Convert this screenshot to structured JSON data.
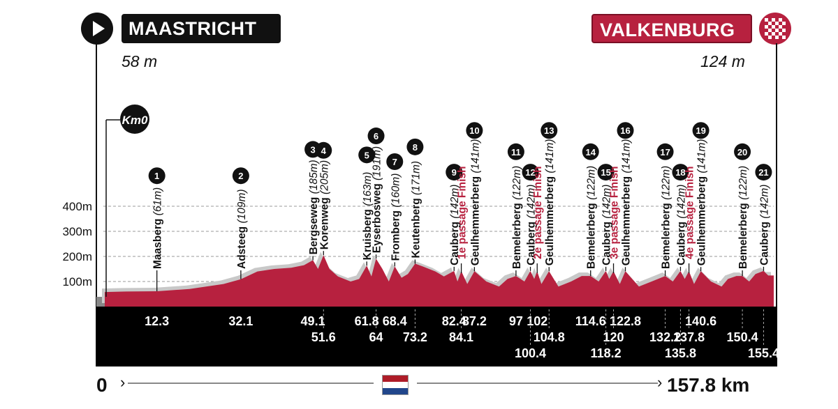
{
  "header": {
    "start_town": "MAASTRICHT",
    "start_elevation": "58 m",
    "finish_town": "VALKENBURG",
    "finish_elevation": "124 m"
  },
  "footer": {
    "start_km": "0",
    "total_km": "157.8 km"
  },
  "colors": {
    "profile": "#b7213f",
    "finish_highlight": "#b7213f",
    "base_band": "#000000",
    "shadow": "#c8c8c8"
  },
  "chart_data": {
    "type": "area",
    "xlabel": "",
    "ylabel": "",
    "x_range": [
      0,
      157.8
    ],
    "y_range": [
      0,
      500
    ],
    "y_ticks": [
      "100m",
      "200m",
      "300m",
      "400m"
    ],
    "start_marker": "Km0",
    "profile": {
      "x": [
        0,
        5,
        12.3,
        20,
        28,
        32.1,
        36,
        40,
        44,
        47,
        49.1,
        50.3,
        51.6,
        53,
        55,
        58,
        60,
        61.8,
        62.9,
        64,
        65.5,
        67,
        68.4,
        70,
        71.5,
        73.2,
        75,
        78,
        80,
        82.4,
        83.2,
        84.1,
        85.5,
        87.2,
        90,
        93,
        95,
        97,
        99,
        100.4,
        101.3,
        102,
        103,
        104.8,
        107,
        110,
        112.5,
        114.6,
        116.5,
        118.2,
        119,
        120,
        121.5,
        122.8,
        126,
        129,
        132.2,
        134,
        135.8,
        136.8,
        137.8,
        139,
        140.6,
        143,
        145.5,
        147,
        149,
        150.4,
        152,
        153.5,
        155.4,
        156.5,
        157.8
      ],
      "y": [
        58,
        60,
        61,
        70,
        90,
        109,
        140,
        150,
        155,
        165,
        185,
        150,
        205,
        150,
        120,
        100,
        110,
        163,
        120,
        191,
        150,
        100,
        160,
        115,
        130,
        171,
        160,
        140,
        120,
        142,
        100,
        141,
        90,
        141,
        100,
        80,
        110,
        122,
        100,
        142,
        110,
        141,
        90,
        141,
        80,
        100,
        122,
        122,
        100,
        142,
        110,
        141,
        90,
        141,
        80,
        100,
        122,
        100,
        142,
        110,
        141,
        90,
        141,
        100,
        80,
        110,
        122,
        122,
        100,
        130,
        142,
        124,
        124
      ]
    },
    "climbs": [
      {
        "num": "1",
        "name": "Maasberg",
        "height": "(61m)",
        "km": 12.3,
        "km_label": "12.3",
        "row": 0
      },
      {
        "num": "2",
        "name": "Adsteeg",
        "height": "(109m)",
        "km": 32.1,
        "km_label": "32.1",
        "row": 0
      },
      {
        "num": "3",
        "name": "Bergseweg",
        "height": "(185m)",
        "km": 49.1,
        "km_label": "49.1",
        "row": 0
      },
      {
        "num": "4",
        "name": "Korenweg",
        "height": "(205m)",
        "km": 51.6,
        "km_label": "51.6",
        "row": 1
      },
      {
        "num": "5",
        "name": "Kruisberg",
        "height": "(163m)",
        "km": 61.8,
        "km_label": "61.8",
        "row": 0
      },
      {
        "num": "6",
        "name": "Eyserbosweg",
        "height": "(191m)",
        "km": 64,
        "km_label": "64",
        "row": 1
      },
      {
        "num": "7",
        "name": "Fromberg",
        "height": "(160m)",
        "km": 68.4,
        "km_label": "68.4",
        "row": 0
      },
      {
        "num": "8",
        "name": "Keutenberg",
        "height": "(171m)",
        "km": 73.2,
        "km_label": "73.2",
        "row": 1
      },
      {
        "num": "9",
        "name": "Cauberg",
        "height": "(142m)",
        "km": 82.4,
        "km_label": "82.4",
        "row": 0
      },
      {
        "num": "10",
        "name": "Geulhemmerberg",
        "height": "(141m)",
        "km": 87.2,
        "km_label": "87.2",
        "row": 0
      },
      {
        "num": "11",
        "name": "Bemelerberg",
        "height": "(122m)",
        "km": 97,
        "km_label": "97",
        "row": 0
      },
      {
        "num": "12",
        "name": "Cauberg",
        "height": "(142m)",
        "km": 100.4,
        "km_label": "100.4",
        "row": 2
      },
      {
        "num": "13",
        "name": "Geulhemmerberg",
        "height": "(141m)",
        "km": 104.8,
        "km_label": "104.8",
        "row": 1
      },
      {
        "num": "14",
        "name": "Bemelerberg",
        "height": "(122m)",
        "km": 114.6,
        "km_label": "114.6",
        "row": 0
      },
      {
        "num": "15",
        "name": "Cauberg",
        "height": "(142m)",
        "km": 118.2,
        "km_label": "118.2",
        "row": 2
      },
      {
        "num": "16",
        "name": "Geulhemmerberg",
        "height": "(141m)",
        "km": 122.8,
        "km_label": "122.8",
        "row": 0
      },
      {
        "num": "17",
        "name": "Bemelerberg",
        "height": "(122m)",
        "km": 132.2,
        "km_label": "132.2",
        "row": 1
      },
      {
        "num": "18",
        "name": "Cauberg",
        "height": "(142m)",
        "km": 135.8,
        "km_label": "135.8",
        "row": 2
      },
      {
        "num": "19",
        "name": "Geulhemmerberg",
        "height": "(141m)",
        "km": 140.6,
        "km_label": "140.6",
        "row": 0
      },
      {
        "num": "20",
        "name": "Bemelerberg",
        "height": "(122m)",
        "km": 150.4,
        "km_label": "150.4",
        "row": 1
      },
      {
        "num": "21",
        "name": "Cauberg",
        "height": "(142m)",
        "km": 155.4,
        "km_label": "155.4",
        "row": 2
      }
    ],
    "finish_passages": [
      {
        "name": "1e passage Finish",
        "km": 84.1,
        "km_label": "84.1",
        "row": 1
      },
      {
        "name": "2e passage Finish",
        "km": 102,
        "km_label": "102",
        "row": 0
      },
      {
        "name": "3e passage Finish",
        "km": 120,
        "km_label": "120",
        "row": 1
      },
      {
        "name": "4e passage Finish",
        "km": 137.8,
        "km_label": "137.8",
        "row": 1
      }
    ]
  }
}
